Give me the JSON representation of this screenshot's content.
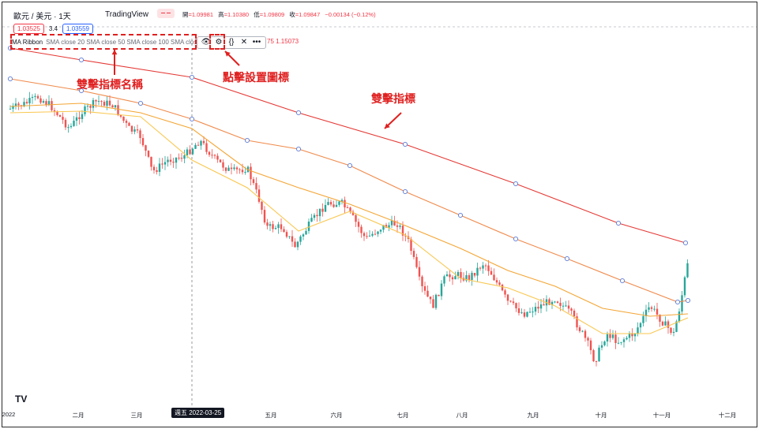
{
  "header": {
    "symbol": "歐元 / 美元 · 1天",
    "brand": "TradingView",
    "ohlc": [
      {
        "key": "開",
        "value": "=1.09981"
      },
      {
        "key": "高",
        "value": "=1.10380"
      },
      {
        "key": "低",
        "value": "=1.09809"
      },
      {
        "key": "收",
        "value": "=1.09847"
      },
      {
        "key": "",
        "value": "−0.00134 (−0.12%)"
      }
    ],
    "sell_price": "1.03525",
    "spread": "3.4",
    "buy_price": "1.03559"
  },
  "indicator": {
    "name": "MA Ribbon",
    "params": "SMA close 20 SMA close 50 SMA close 100 SMA close 200",
    "extra_value": "75 1.15073"
  },
  "toolbar": {
    "visibility_icon": "eye-icon",
    "settings_icon": "gear-icon",
    "source_icon": "braces-icon",
    "remove_icon": "close-icon",
    "more_icon": "more-icon"
  },
  "annotations": {
    "name_label": "雙擊指標名稱",
    "settings_label": "點擊設置圖標",
    "indicator_label": "雙擊指標"
  },
  "x_axis": {
    "labels": [
      "2022",
      "二月",
      "三月",
      "五月",
      "六月",
      "七月",
      "八月",
      "九月",
      "十月",
      "十一月",
      "十二月"
    ],
    "crosshair_date": "週五 2022-03-25"
  },
  "logo_text": "TV",
  "colors": {
    "up": "#26a69a",
    "down": "#ef5350",
    "ma20": "#f9c74f",
    "ma50": "#f4a534",
    "ma100": "#f08a4b",
    "ma200": "#e53935",
    "annotation": "#e02020"
  }
}
